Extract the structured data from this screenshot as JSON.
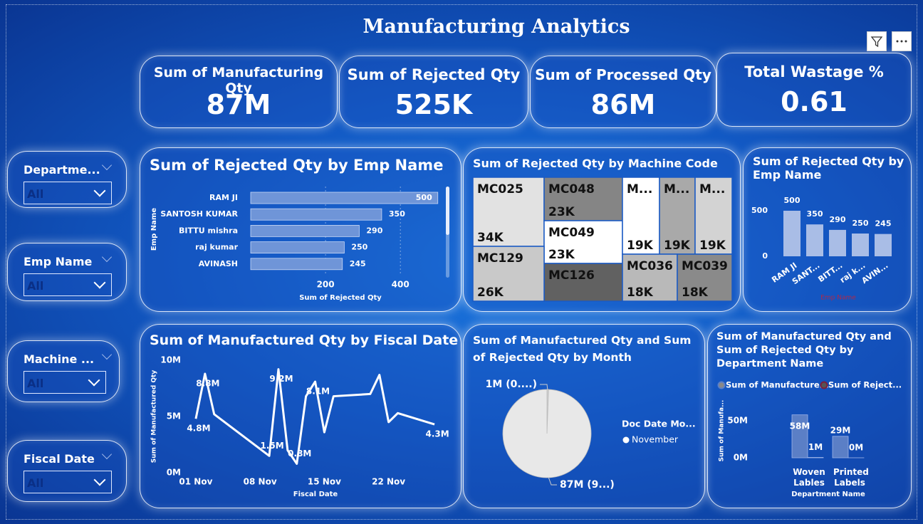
{
  "title": "Manufacturing Analytics",
  "kpis": [
    {
      "label": "Sum of Manufacturing Qty",
      "value": "87M"
    },
    {
      "label": "Sum of Rejected Qty",
      "value": "525K"
    },
    {
      "label": "Sum of Processed Qty",
      "value": "86M"
    },
    {
      "label": "Total Wastage %",
      "value": "0.61"
    }
  ],
  "slicers": [
    {
      "label": "Departme...",
      "value": "All"
    },
    {
      "label": "Emp Name",
      "value": "All"
    },
    {
      "label": "Machine ...",
      "value": "All"
    },
    {
      "label": "Fiscal Date",
      "value": "All"
    }
  ],
  "chart_data": [
    {
      "type": "hbar",
      "title": "Sum of Rejected Qty by Emp Name",
      "x_label": "Sum of Rejected Qty",
      "y_label": "Emp Name",
      "categories": [
        "RAM JI",
        "SANTOSH KUMAR",
        "BITTU mishra",
        "raj kumar",
        "AVINASH"
      ],
      "values": [
        500,
        350,
        290,
        250,
        245
      ],
      "color": "#6f95d8",
      "xlim": [
        0,
        510
      ],
      "xticks": [
        200,
        400
      ],
      "grid": true
    },
    {
      "type": "treemap",
      "title": "Sum of Rejected Qty by Machine Code",
      "categories": [
        "MC025",
        "MC048",
        "MC049",
        "MC126",
        "MC129",
        "M...",
        "M...",
        "M...",
        "MC036",
        "MC039"
      ],
      "values": [
        34000,
        23000,
        23000,
        20000,
        26000,
        19000,
        19000,
        19000,
        18000,
        18000
      ],
      "value_labels": [
        "34K",
        "23K",
        "23K",
        null,
        "26K",
        "19K",
        "19K",
        "19K",
        "18K",
        "18K"
      ],
      "colors": [
        "#e2e2e2",
        "#858585",
        "#ffffff",
        "#616161",
        "#c9c9c9",
        "#ffffff",
        "#a9a9a9",
        "#d3d3d3",
        "#b9b9b9",
        "#8a8a8a"
      ]
    },
    {
      "type": "column",
      "title": "Sum of Rejected Qty by Emp Name",
      "x_label": "Emp Name",
      "categories": [
        "RAM JI",
        "SANT...",
        "BITT...",
        "raj k...",
        "AVIN..."
      ],
      "values": [
        500,
        350,
        290,
        250,
        245
      ],
      "color": "#a9bde6",
      "ylim": [
        0,
        500
      ],
      "yticks": [
        0,
        500
      ]
    },
    {
      "type": "line",
      "title": "Sum of Manufactured Qty by Fiscal Date",
      "x_label": "Fiscal Date",
      "y_label": "Sum of Manufactured Qty",
      "x": [
        1,
        2,
        3,
        9,
        10,
        11,
        12,
        13,
        14,
        15,
        16,
        20,
        21,
        22,
        23,
        27
      ],
      "values": [
        4800000,
        8800000,
        5200000,
        1500000,
        9200000,
        2000000,
        800000,
        6800000,
        8100000,
        3600000,
        6800000,
        7000000,
        8700000,
        4500000,
        5300000,
        4300000
      ],
      "value_labels": [
        "4.8M",
        "8.8M",
        null,
        "1.5M",
        "9.2M",
        null,
        "0.8M",
        null,
        "8.1M",
        null,
        null,
        null,
        null,
        null,
        null,
        "4.3M"
      ],
      "color": "#ffffff",
      "xlim": [
        -0.5,
        28
      ],
      "xticks": [
        {
          "value": 1,
          "label": "01 Nov"
        },
        {
          "value": 8,
          "label": "08 Nov"
        },
        {
          "value": 15,
          "label": "15 Nov"
        },
        {
          "value": 22,
          "label": "22 Nov"
        }
      ],
      "ylim": [
        0,
        10000000
      ],
      "yticks": [
        {
          "value": 0,
          "label": "0M"
        },
        {
          "value": 5000000,
          "label": "5M"
        },
        {
          "value": 10000000,
          "label": "10M"
        }
      ]
    },
    {
      "type": "pie",
      "title": "Sum of Manufactured Qty and Sum of Rejected Qty by Month",
      "values": [
        525000,
        87000000
      ],
      "value_labels": [
        "1M (0....)",
        "87M (9...)"
      ],
      "colors": [
        "#d0d0d0",
        "#e8e8e8"
      ],
      "legend_title": "Doc Date Mo...",
      "legend": [
        "November"
      ]
    },
    {
      "type": "grouped_column",
      "title": "Sum of Manufactured Qty and Sum of Rejected Qty by Department Name",
      "x_label": "Department Name",
      "y_label": "Sum of Manufa...",
      "categories": [
        "Woven Lables",
        "Printed Labels"
      ],
      "series": [
        {
          "name": "Sum of Manufacture...",
          "color": "#5b7fc6",
          "values": [
            58000000,
            29000000
          ],
          "value_labels": [
            "58M",
            "29M"
          ]
        },
        {
          "name": "Sum of Reject...",
          "color": "#7a1f3d",
          "values": [
            500000,
            25000
          ],
          "value_labels": [
            "1M",
            "0M"
          ]
        }
      ],
      "ylim": [
        0,
        65000000
      ],
      "yticks": [
        {
          "value": 0,
          "label": "0M"
        },
        {
          "value": 50000000,
          "label": "50M"
        }
      ]
    }
  ]
}
